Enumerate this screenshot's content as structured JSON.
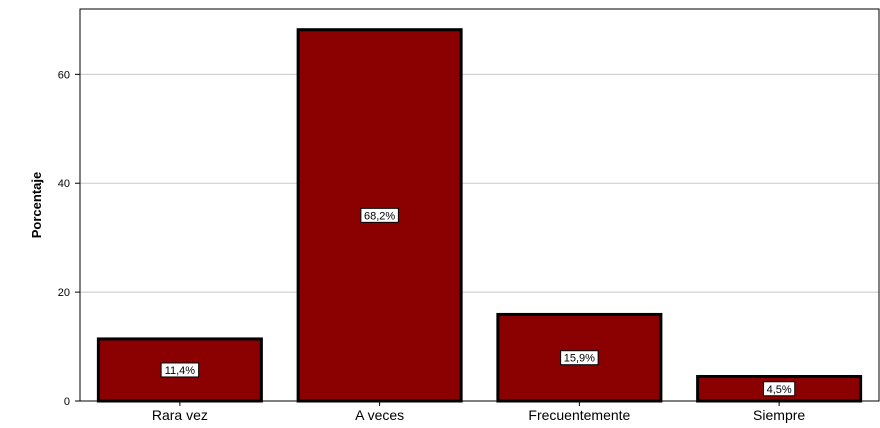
{
  "chart_data": {
    "type": "bar",
    "categories": [
      "Rara vez",
      "A veces",
      "Frecuentemente",
      "Siempre"
    ],
    "values": [
      11.4,
      68.2,
      15.9,
      4.5
    ],
    "data_labels": [
      "11,4%",
      "68,2%",
      "15,9%",
      "4,5%"
    ],
    "ylabel": "Porcentaje",
    "xlabel": "",
    "ylim": [
      0,
      72
    ],
    "yticks": [
      0,
      20,
      40,
      60
    ],
    "grid": true,
    "bar_color": "#8b0000",
    "bar_edge_color": "#000000"
  }
}
